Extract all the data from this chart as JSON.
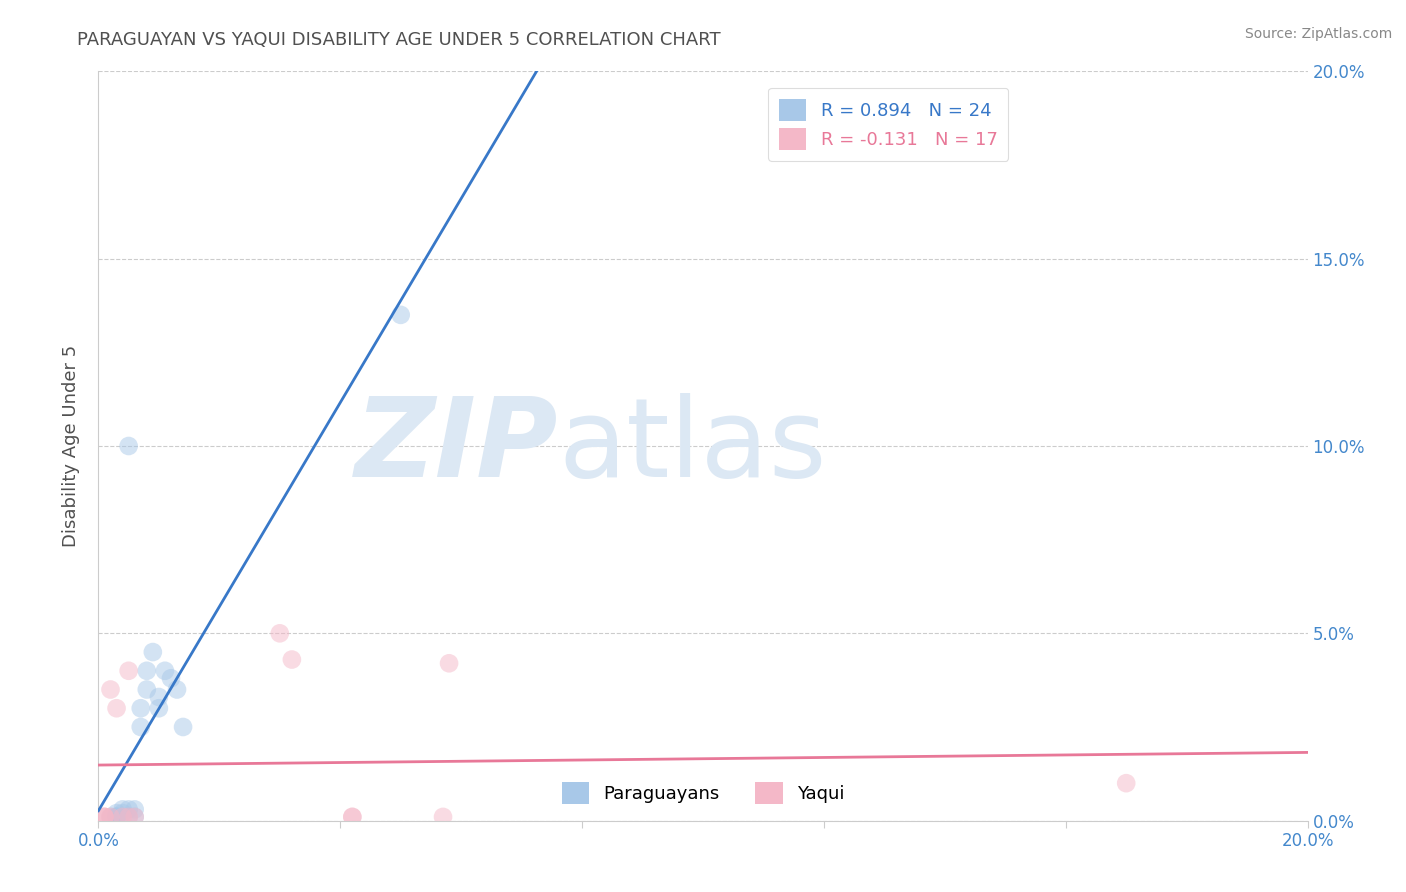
{
  "title": "PARAGUAYAN VS YAQUI DISABILITY AGE UNDER 5 CORRELATION CHART",
  "source_text": "Source: ZipAtlas.com",
  "ylabel": "Disability Age Under 5",
  "xlim": [
    0.0,
    0.2
  ],
  "ylim": [
    0.0,
    0.2
  ],
  "x_tick_positions": [
    0.0,
    0.04,
    0.08,
    0.12,
    0.16,
    0.2
  ],
  "x_tick_labels": [
    "0.0%",
    "",
    "",
    "",
    "",
    "20.0%"
  ],
  "y_ticks": [
    0.0,
    0.05,
    0.1,
    0.15,
    0.2
  ],
  "y_tick_labels": [
    "0.0%",
    "5.0%",
    "10.0%",
    "15.0%",
    "20.0%"
  ],
  "paraguayan_color": "#a8c8e8",
  "yaqui_color": "#f4b8c8",
  "trend_blue": "#3878c8",
  "trend_pink": "#e87898",
  "legend_r1": "R = 0.894",
  "legend_n1": "N = 24",
  "legend_r2": "R = -0.131",
  "legend_n2": "N = 17",
  "legend_color1": "#3878c8",
  "legend_color2": "#e87898",
  "watermark_zip": "ZIP",
  "watermark_atlas": "atlas",
  "watermark_color": "#dce8f4",
  "paraguayan_x": [
    0.002,
    0.003,
    0.003,
    0.004,
    0.004,
    0.005,
    0.005,
    0.006,
    0.006,
    0.007,
    0.007,
    0.008,
    0.008,
    0.009,
    0.01,
    0.01,
    0.011,
    0.012,
    0.013,
    0.014,
    0.003,
    0.003,
    0.005,
    0.05
  ],
  "paraguayan_y": [
    0.001,
    0.001,
    0.002,
    0.002,
    0.003,
    0.001,
    0.003,
    0.001,
    0.003,
    0.025,
    0.03,
    0.035,
    0.04,
    0.045,
    0.03,
    0.033,
    0.04,
    0.038,
    0.035,
    0.025,
    0.001,
    0.001,
    0.1,
    0.135
  ],
  "yaqui_x": [
    0.001,
    0.001,
    0.001,
    0.002,
    0.002,
    0.003,
    0.004,
    0.005,
    0.005,
    0.006,
    0.03,
    0.032,
    0.042,
    0.042,
    0.057,
    0.058,
    0.17
  ],
  "yaqui_y": [
    0.001,
    0.001,
    0.001,
    0.001,
    0.035,
    0.03,
    0.001,
    0.001,
    0.04,
    0.001,
    0.05,
    0.043,
    0.001,
    0.001,
    0.001,
    0.042,
    0.01
  ],
  "marker_size": 180,
  "alpha_scatter": 0.5,
  "background_color": "#ffffff",
  "grid_color": "#cccccc",
  "title_color": "#505050",
  "tick_label_color": "#4488cc",
  "ylabel_color": "#505050"
}
